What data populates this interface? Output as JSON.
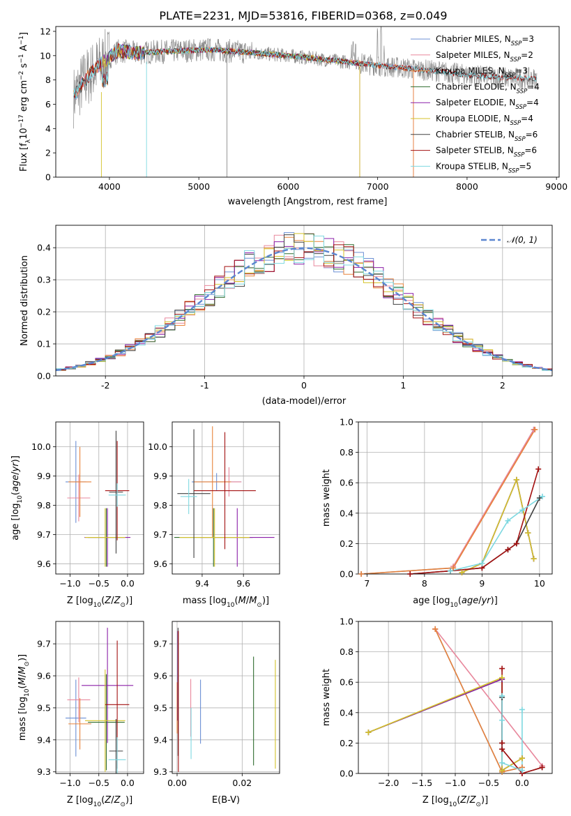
{
  "title": "PLATE=2231, MJD=53816, FIBERID=0368, z=0.049",
  "colors": {
    "chabrier_miles": "#6b8fd4",
    "salpeter_miles": "#e8879c",
    "kroupa_miles": "#e8823a",
    "chabrier_elodie": "#2e6b2e",
    "salpeter_elodie": "#8b1fa8",
    "kroupa_elodie": "#d4c22a",
    "chabrier_stelib": "#404040",
    "salpeter_stelib": "#a31010",
    "kroupa_stelib": "#7dd8e0",
    "norm": "#5b86d0",
    "grid": "#b0b0b0"
  },
  "chart_data": [
    {
      "id": "spectrum",
      "type": "line",
      "xlabel": "wavelength [Angstrom, rest frame]",
      "ylabel": "Flux [f_λ 10^-17 erg cm^-2 s^-1 A^-1]",
      "xlim": [
        3400,
        9030
      ],
      "ylim": [
        0,
        12.4
      ],
      "xticks": [
        4000,
        5000,
        6000,
        7000,
        8000,
        9000
      ],
      "yticks": [
        0,
        2,
        4,
        6,
        8,
        10,
        12
      ],
      "grid": false,
      "legend_position": "top-right",
      "legend": [
        {
          "label": "Chabrier MILES, N",
          "sub": "SSP",
          "tail": "=3",
          "color_key": "chabrier_miles"
        },
        {
          "label": "Salpeter MILES, N",
          "sub": "SSP",
          "tail": "=2",
          "color_key": "salpeter_miles"
        },
        {
          "label": "Kroupa MILES, N",
          "sub": "SSP",
          "tail": "=3",
          "color_key": "kroupa_miles"
        },
        {
          "label": "Chabrier ELODIE, N",
          "sub": "SSP",
          "tail": "=4",
          "color_key": "chabrier_elodie"
        },
        {
          "label": "Salpeter ELODIE, N",
          "sub": "SSP",
          "tail": "=4",
          "color_key": "salpeter_elodie"
        },
        {
          "label": "Kroupa ELODIE, N",
          "sub": "SSP",
          "tail": "=4",
          "color_key": "kroupa_elodie"
        },
        {
          "label": "Chabrier STELIB, N",
          "sub": "SSP",
          "tail": "=6",
          "color_key": "chabrier_stelib"
        },
        {
          "label": "Salpeter STELIB, N",
          "sub": "SSP",
          "tail": "=6",
          "color_key": "salpeter_stelib"
        },
        {
          "label": "Kroupa STELIB, N",
          "sub": "SSP",
          "tail": "=5",
          "color_key": "kroupa_stelib"
        }
      ],
      "continuum": [
        [
          3600,
          6.6
        ],
        [
          3700,
          7.8
        ],
        [
          3800,
          8.6
        ],
        [
          3950,
          9.6
        ],
        [
          4100,
          10.4
        ],
        [
          4300,
          10.2
        ],
        [
          4500,
          10.3
        ],
        [
          4800,
          10.4
        ],
        [
          5100,
          10.5
        ],
        [
          5500,
          10.3
        ],
        [
          6000,
          10.0
        ],
        [
          6500,
          9.6
        ],
        [
          7000,
          9.2
        ],
        [
          7400,
          8.9
        ],
        [
          7700,
          8.7
        ],
        [
          8000,
          8.4
        ],
        [
          8400,
          8.2
        ],
        [
          8800,
          8.1
        ]
      ]
    },
    {
      "id": "residuals",
      "type": "line",
      "xlabel": "(data-model)/error",
      "ylabel": "Normed distribution",
      "xlim": [
        -2.5,
        2.5
      ],
      "ylim": [
        0,
        0.47
      ],
      "xticks": [
        -2,
        -1,
        0,
        1,
        2
      ],
      "yticks": [
        0.0,
        0.1,
        0.2,
        0.3,
        0.4
      ],
      "grid": true,
      "legend_position": "top-right",
      "legend": [
        {
          "label": "𝒩(0, 1)",
          "color_key": "norm",
          "dashed": true
        }
      ],
      "histogram_bin_width": 0.1
    },
    {
      "id": "age_vs_Z",
      "type": "scatter",
      "xlabel": "Z [log10(Z/Z⊙)]",
      "ylabel": "age  [log10(age/yr)]",
      "xlim": [
        -1.25,
        0.28
      ],
      "ylim": [
        9.565,
        10.085
      ],
      "xticks": [
        -1.0,
        -0.5,
        0.0
      ],
      "xticklabels": [
        "−1.0",
        "−0.5",
        "0.0"
      ],
      "yticks": [
        9.6,
        9.7,
        9.8,
        9.9,
        10.0
      ],
      "grid": true,
      "errorbars": [
        {
          "key": "chabrier_miles",
          "x": -0.9,
          "xerr": 0.18,
          "y": 9.88,
          "yerr": 0.14
        },
        {
          "key": "salpeter_miles",
          "x": -0.85,
          "xerr": 0.2,
          "y": 9.825,
          "yerr": 0.08
        },
        {
          "key": "kroupa_miles",
          "x": -0.83,
          "xerr": 0.2,
          "y": 9.88,
          "yerr": 0.12
        },
        {
          "key": "chabrier_elodie",
          "x": -0.37,
          "xerr": 0.32,
          "y": 9.69,
          "yerr": 0.1
        },
        {
          "key": "salpeter_elodie",
          "x": -0.35,
          "xerr": 0.4,
          "y": 9.69,
          "yerr": 0.1
        },
        {
          "key": "kroupa_elodie",
          "x": -0.39,
          "xerr": 0.35,
          "y": 9.69,
          "yerr": 0.1
        },
        {
          "key": "chabrier_stelib",
          "x": -0.2,
          "xerr": 0.12,
          "y": 9.845,
          "yerr": 0.21
        },
        {
          "key": "salpeter_stelib",
          "x": -0.18,
          "xerr": 0.21,
          "y": 9.85,
          "yerr": 0.17
        },
        {
          "key": "kroupa_stelib",
          "x": -0.18,
          "xerr": 0.15,
          "y": 9.835,
          "yerr": 0.04
        }
      ]
    },
    {
      "id": "age_vs_mass",
      "type": "scatter",
      "xlabel": "mass [log10(M/M⊙)]",
      "ylabel": "",
      "xlim": [
        9.255,
        9.775
      ],
      "ylim": [
        9.565,
        10.085
      ],
      "xticks": [
        9.4,
        9.6
      ],
      "yticks": [
        9.6,
        9.7,
        9.8,
        9.9,
        10.0
      ],
      "grid": true,
      "errorbars": [
        {
          "key": "chabrier_miles",
          "x": 9.47,
          "xerr": 0.12,
          "y": 9.88,
          "yerr": 0.03
        },
        {
          "key": "salpeter_miles",
          "x": 9.53,
          "xerr": 0.06,
          "y": 9.88,
          "yerr": 0.05
        },
        {
          "key": "kroupa_miles",
          "x": 9.45,
          "xerr": 0.09,
          "y": 9.88,
          "yerr": 0.19
        },
        {
          "key": "chabrier_elodie",
          "x": 9.455,
          "xerr": 0.19,
          "y": 9.69,
          "yerr": 0.1
        },
        {
          "key": "salpeter_elodie",
          "x": 9.57,
          "xerr": 0.18,
          "y": 9.69,
          "yerr": 0.1
        },
        {
          "key": "kroupa_elodie",
          "x": 9.46,
          "xerr": 0.17,
          "y": 9.69,
          "yerr": 0.1
        },
        {
          "key": "chabrier_stelib",
          "x": 9.36,
          "xerr": 0.08,
          "y": 9.84,
          "yerr": 0.22
        },
        {
          "key": "salpeter_stelib",
          "x": 9.51,
          "xerr": 0.15,
          "y": 9.85,
          "yerr": 0.2
        },
        {
          "key": "kroupa_stelib",
          "x": 9.335,
          "xerr": 0.04,
          "y": 9.83,
          "yerr": 0.06
        }
      ]
    },
    {
      "id": "weight_vs_age",
      "type": "line",
      "xlabel": "age  [log10(age/yr)]",
      "ylabel": "mass weight",
      "xlim": [
        6.85,
        10.22
      ],
      "ylim": [
        0,
        1.0
      ],
      "xticks": [
        7,
        8,
        9,
        10
      ],
      "yticks": [
        0.0,
        0.2,
        0.4,
        0.6,
        0.8,
        1.0
      ],
      "grid": true,
      "series": [
        {
          "key": "chabrier_miles",
          "x": [
            6.9,
            8.5,
            9.9
          ],
          "y": [
            0.0,
            0.04,
            0.95
          ]
        },
        {
          "key": "salpeter_miles",
          "x": [
            8.5,
            9.9
          ],
          "y": [
            0.05,
            0.95
          ]
        },
        {
          "key": "kroupa_miles",
          "x": [
            6.9,
            8.5,
            9.92
          ],
          "y": [
            0.0,
            0.04,
            0.95
          ]
        },
        {
          "key": "chabrier_elodie",
          "x": [
            8.65,
            9.0,
            9.6,
            9.8,
            9.9
          ],
          "y": [
            0.01,
            0.07,
            0.62,
            0.27,
            0.1
          ]
        },
        {
          "key": "salpeter_elodie",
          "x": [
            8.65,
            9.0,
            9.6,
            9.8,
            9.9
          ],
          "y": [
            0.01,
            0.07,
            0.62,
            0.27,
            0.1
          ]
        },
        {
          "key": "kroupa_elodie",
          "x": [
            8.65,
            9.0,
            9.6,
            9.8,
            9.9
          ],
          "y": [
            0.01,
            0.07,
            0.62,
            0.27,
            0.1
          ]
        },
        {
          "key": "chabrier_stelib",
          "x": [
            7.75,
            8.45,
            9.0,
            9.45,
            9.6,
            10.0
          ],
          "y": [
            0.0,
            0.02,
            0.04,
            0.16,
            0.2,
            0.5
          ]
        },
        {
          "key": "salpeter_stelib",
          "x": [
            7.75,
            8.45,
            9.0,
            9.45,
            9.6,
            9.98
          ],
          "y": [
            0.0,
            0.02,
            0.04,
            0.16,
            0.2,
            0.69
          ]
        },
        {
          "key": "kroupa_stelib",
          "x": [
            8.45,
            9.0,
            9.45,
            9.7,
            10.05
          ],
          "y": [
            0.02,
            0.07,
            0.35,
            0.42,
            0.51
          ]
        }
      ]
    },
    {
      "id": "mass_vs_Z",
      "type": "scatter",
      "xlabel": "Z [log10(Z/Z⊙)]",
      "ylabel": "mass [log10(M/M⊙)]",
      "xlim": [
        -1.25,
        0.28
      ],
      "ylim": [
        9.295,
        9.77
      ],
      "xticks": [
        -1.0,
        -0.5,
        0.0
      ],
      "xticklabels": [
        "−1.0",
        "−0.5",
        "0.0"
      ],
      "yticks": [
        9.3,
        9.4,
        9.5,
        9.6,
        9.7
      ],
      "grid": true,
      "errorbars": [
        {
          "key": "chabrier_miles",
          "x": -0.9,
          "xerr": 0.18,
          "y": 9.468,
          "yerr": 0.12
        },
        {
          "key": "salpeter_miles",
          "x": -0.85,
          "xerr": 0.2,
          "y": 9.525,
          "yerr": 0.07
        },
        {
          "key": "kroupa_miles",
          "x": -0.83,
          "xerr": 0.2,
          "y": 9.45,
          "yerr": 0.08
        },
        {
          "key": "chabrier_elodie",
          "x": -0.37,
          "xerr": 0.32,
          "y": 9.455,
          "yerr": 0.15
        },
        {
          "key": "salpeter_elodie",
          "x": -0.35,
          "xerr": 0.45,
          "y": 9.57,
          "yerr": 0.18
        },
        {
          "key": "kroupa_elodie",
          "x": -0.39,
          "xerr": 0.35,
          "y": 9.46,
          "yerr": 0.16
        },
        {
          "key": "chabrier_stelib",
          "x": -0.2,
          "xerr": 0.12,
          "y": 9.365,
          "yerr": 0.1
        },
        {
          "key": "salpeter_stelib",
          "x": -0.18,
          "xerr": 0.21,
          "y": 9.51,
          "yerr": 0.2
        },
        {
          "key": "kroupa_stelib",
          "x": -0.18,
          "xerr": 0.15,
          "y": 9.338,
          "yerr": 0.07
        }
      ]
    },
    {
      "id": "mass_vs_ebv",
      "type": "scatter",
      "xlabel": "E(B-V)",
      "ylabel": "",
      "xlim": [
        -0.0015,
        0.0315
      ],
      "ylim": [
        9.295,
        9.77
      ],
      "xticks": [
        0.0,
        0.02
      ],
      "xticklabels": [
        "0.00",
        "0.02"
      ],
      "yticks": [
        9.3,
        9.4,
        9.5,
        9.6,
        9.7
      ],
      "grid": true,
      "errorbars": [
        {
          "key": "chabrier_miles",
          "x": 0.0072,
          "xerr": 0,
          "y": 9.488,
          "yerr": 0.1
        },
        {
          "key": "salpeter_miles",
          "x": 0.0042,
          "xerr": 0,
          "y": 9.5,
          "yerr": 0.09
        },
        {
          "key": "kroupa_miles",
          "x": 0.0,
          "xerr": 0,
          "y": 9.5,
          "yerr": 0.08
        },
        {
          "key": "chabrier_elodie",
          "x": 0.0235,
          "xerr": 0,
          "y": 9.49,
          "yerr": 0.17
        },
        {
          "key": "salpeter_elodie",
          "x": 0.0002,
          "xerr": 0,
          "y": 9.6,
          "yerr": 0.14
        },
        {
          "key": "kroupa_elodie",
          "x": 0.0302,
          "xerr": 0,
          "y": 9.48,
          "yerr": 0.17
        },
        {
          "key": "chabrier_stelib",
          "x": 0.0003,
          "xerr": 0,
          "y": 9.55,
          "yerr": 0.2
        },
        {
          "key": "salpeter_stelib",
          "x": 0.0004,
          "xerr": 0,
          "y": 9.52,
          "yerr": 0.22
        },
        {
          "key": "kroupa_stelib",
          "x": 0.0043,
          "xerr": 0,
          "y": 9.42,
          "yerr": 0.08
        }
      ]
    },
    {
      "id": "weight_vs_Z",
      "type": "line",
      "xlabel": "Z [log10(Z/Z⊙)]",
      "ylabel": "mass weight",
      "xlim": [
        -2.45,
        0.45
      ],
      "ylim": [
        0,
        1.0
      ],
      "xticks": [
        -2.0,
        -1.5,
        -1.0,
        -0.5,
        0.0
      ],
      "xticklabels": [
        "−2.0",
        "−1.5",
        "−1.0",
        "−0.5",
        "0.0"
      ],
      "yticks": [
        0.0,
        0.2,
        0.4,
        0.6,
        0.8,
        1.0
      ],
      "grid": true,
      "series": [
        {
          "key": "chabrier_miles",
          "x": [
            -1.3,
            -0.3,
            0.0
          ],
          "y": [
            0.95,
            0.01,
            0.04
          ]
        },
        {
          "key": "salpeter_miles",
          "x": [
            -1.3,
            0.3
          ],
          "y": [
            0.95,
            0.05
          ]
        },
        {
          "key": "kroupa_miles",
          "x": [
            -1.3,
            -0.3,
            0.0
          ],
          "y": [
            0.95,
            0.01,
            0.04
          ]
        },
        {
          "key": "chabrier_elodie",
          "x": [
            -2.3,
            -0.3,
            -0.3,
            0.0
          ],
          "y": [
            0.27,
            0.62,
            0.02,
            0.1
          ]
        },
        {
          "key": "salpeter_elodie",
          "x": [
            -2.3,
            -0.3,
            -0.3,
            0.0
          ],
          "y": [
            0.27,
            0.62,
            0.02,
            0.1
          ]
        },
        {
          "key": "kroupa_elodie",
          "x": [
            -2.3,
            -0.3,
            -0.3,
            0.0
          ],
          "y": [
            0.27,
            0.63,
            0.02,
            0.1
          ]
        },
        {
          "key": "chabrier_stelib",
          "x": [
            -0.3,
            -0.3,
            -0.3,
            0.0,
            0.3
          ],
          "y": [
            0.5,
            0.2,
            0.16,
            0.0,
            0.04
          ]
        },
        {
          "key": "salpeter_stelib",
          "x": [
            -0.3,
            -0.3,
            -0.3,
            0.0,
            0.3
          ],
          "y": [
            0.69,
            0.2,
            0.16,
            0.0,
            0.04
          ]
        },
        {
          "key": "kroupa_stelib",
          "x": [
            -0.3,
            -0.3,
            -0.3,
            0.0,
            0.0
          ],
          "y": [
            0.51,
            0.35,
            0.07,
            0.02,
            0.42
          ]
        }
      ]
    }
  ]
}
